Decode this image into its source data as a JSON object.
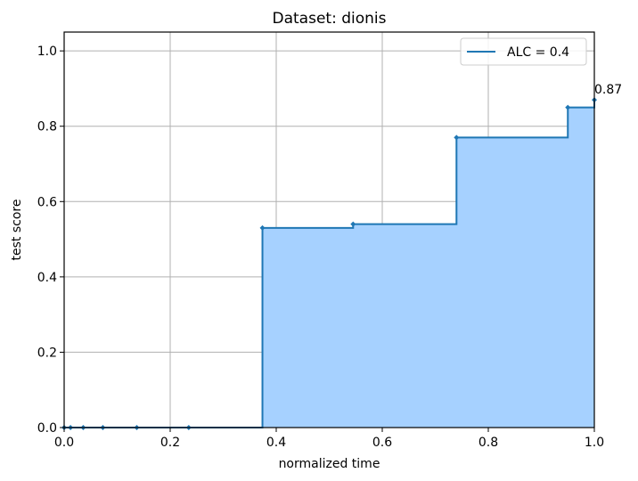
{
  "chart_data": {
    "type": "line",
    "subtype": "step-post with filled area",
    "title": "Dataset: dionis",
    "xlabel": "normalized time",
    "ylabel": "test score",
    "xlim": [
      0.0,
      1.0
    ],
    "ylim": [
      0.0,
      1.05
    ],
    "x_ticks": [
      0.0,
      0.2,
      0.4,
      0.6,
      0.8,
      1.0
    ],
    "x_tick_labels": [
      "0.0",
      "0.2",
      "0.4",
      "0.6",
      "0.8",
      "1.0"
    ],
    "y_ticks": [
      0.0,
      0.2,
      0.4,
      0.6,
      0.8,
      1.0
    ],
    "y_tick_labels": [
      "0.0",
      "0.2",
      "0.4",
      "0.6",
      "0.8",
      "1.0"
    ],
    "grid": true,
    "legend_position": "top-right",
    "series": [
      {
        "name": "ALC = 0.4",
        "color": "#1f77b4",
        "fill_color": "#a6d1ff",
        "x": [
          0.0,
          0.012,
          0.036,
          0.073,
          0.137,
          0.235,
          0.374,
          0.545,
          0.74,
          0.95,
          1.0
        ],
        "y": [
          0.0,
          0.0,
          0.0,
          0.0,
          0.0,
          0.0,
          0.53,
          0.54,
          0.77,
          0.85,
          0.87
        ]
      }
    ],
    "annotations": [
      {
        "text": "0.87",
        "x": 1.0,
        "y": 0.87
      }
    ]
  }
}
